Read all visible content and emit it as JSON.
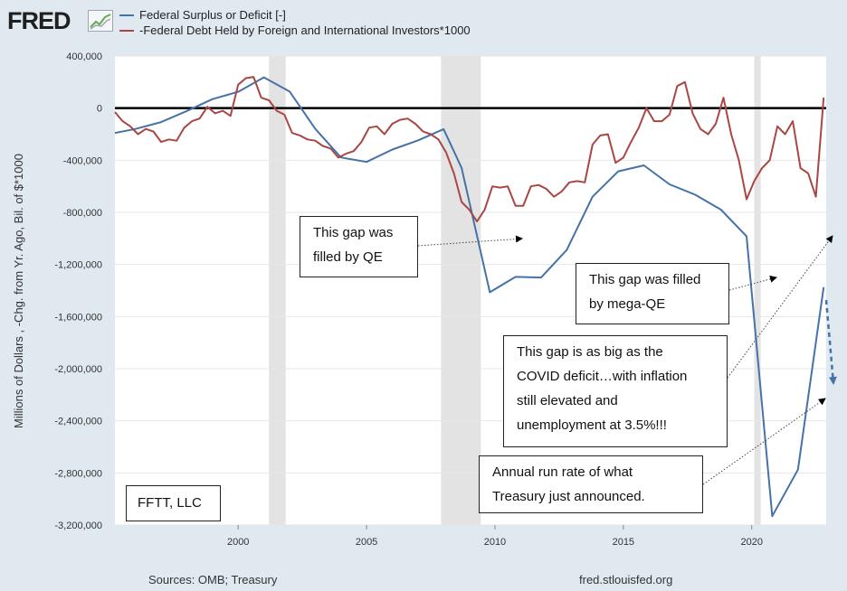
{
  "header": {
    "logo_text": "FRED",
    "logo_icon": "chart-line-icon"
  },
  "legend": {
    "items": [
      {
        "label": "Federal Surplus or Deficit [-]",
        "color": "#4572a7"
      },
      {
        "label": "-Federal Debt Held by Foreign and International Investors*1000",
        "color": "#aa4643"
      }
    ]
  },
  "footer": {
    "source": "Sources: OMB; Treasury",
    "site": "fred.stlouisfed.org"
  },
  "annotations": [
    {
      "id": "qe",
      "lines": [
        "This gap was",
        "filled by QE"
      ]
    },
    {
      "id": "mega-qe",
      "lines": [
        "This gap was filled",
        "by mega-QE"
      ]
    },
    {
      "id": "covid",
      "lines": [
        "This gap is as big as the",
        "COVID deficit…with inflation",
        "still elevated and",
        "unemployment at 3.5%!!!"
      ]
    },
    {
      "id": "annual",
      "lines": [
        "Annual run rate of what",
        "Treasury just announced."
      ]
    },
    {
      "id": "fftt",
      "lines": [
        "FFTT, LLC"
      ]
    }
  ],
  "chart_data": {
    "type": "line",
    "title": "",
    "ylabel": "Millions of Dollars , -Chg. from Yr. Ago, Bil. of $*1000",
    "xlabel": "",
    "xlim": [
      1995.2,
      2022.9
    ],
    "ylim": [
      -3200000,
      400000
    ],
    "yticks": [
      400000,
      0,
      -400000,
      -800000,
      -1200000,
      -1600000,
      -2000000,
      -2400000,
      -2800000,
      -3200000
    ],
    "ytick_labels": [
      "400,000",
      "0",
      "-400,000",
      "-800,000",
      "-1,200,000",
      "-1,600,000",
      "-2,000,000",
      "-2,400,000",
      "-2,800,000",
      "-3,200,000"
    ],
    "xticks": [
      2000,
      2005,
      2010,
      2015,
      2020
    ],
    "xtick_labels": [
      "2000",
      "2005",
      "2010",
      "2015",
      "2020"
    ],
    "recessions": [
      [
        2001.2,
        2001.85
      ],
      [
        2007.9,
        2009.45
      ],
      [
        2020.1,
        2020.35
      ]
    ],
    "zero_line": true,
    "series": [
      {
        "name": "Federal Surplus or Deficit [-]",
        "color": "#4572a7",
        "x": [
          1995.2,
          1996,
          1997,
          1998,
          1999,
          2000,
          2001,
          2002,
          2003,
          2004,
          2005,
          2006,
          2007,
          2008,
          2008.7,
          2009.8,
          2010.8,
          2011.8,
          2012.8,
          2013.8,
          2014.8,
          2015.8,
          2016.8,
          2017.8,
          2018.8,
          2019.8,
          2020.8,
          2021.8,
          2022.8
        ],
        "y": [
          -190000,
          -160000,
          -107000,
          -22000,
          69000,
          125000,
          236000,
          128000,
          -158000,
          -378000,
          -413000,
          -318000,
          -248000,
          -161000,
          -459000,
          -1413000,
          -1295000,
          -1300000,
          -1087000,
          -680000,
          -485000,
          -439000,
          -585000,
          -665000,
          -779000,
          -984000,
          -3132000,
          -2775000,
          -1375000
        ]
      },
      {
        "name": "-Federal Debt Held by Foreign and International Investors*1000",
        "color": "#aa4643",
        "x": [
          1995.2,
          1995.5,
          1995.8,
          1996.1,
          1996.4,
          1996.7,
          1997.0,
          1997.3,
          1997.6,
          1997.9,
          1998.2,
          1998.5,
          1998.8,
          1999.1,
          1999.4,
          1999.7,
          2000.0,
          2000.3,
          2000.6,
          2000.9,
          2001.2,
          2001.5,
          2001.8,
          2002.1,
          2002.4,
          2002.7,
          2003.0,
          2003.3,
          2003.6,
          2003.9,
          2004.2,
          2004.5,
          2004.8,
          2005.1,
          2005.4,
          2005.7,
          2006.0,
          2006.3,
          2006.6,
          2006.9,
          2007.2,
          2007.5,
          2007.8,
          2008.1,
          2008.4,
          2008.7,
          2009.0,
          2009.3,
          2009.6,
          2009.9,
          2010.2,
          2010.5,
          2010.8,
          2011.1,
          2011.4,
          2011.7,
          2012.0,
          2012.3,
          2012.6,
          2012.9,
          2013.2,
          2013.5,
          2013.8,
          2014.1,
          2014.4,
          2014.7,
          2015.0,
          2015.3,
          2015.6,
          2015.9,
          2016.2,
          2016.5,
          2016.8,
          2017.1,
          2017.4,
          2017.7,
          2018.0,
          2018.3,
          2018.6,
          2018.9,
          2019.2,
          2019.5,
          2019.8,
          2020.1,
          2020.4,
          2020.7,
          2021.0,
          2021.3,
          2021.6,
          2021.9,
          2022.2,
          2022.5,
          2022.8
        ],
        "y": [
          -30000,
          -100000,
          -140000,
          -200000,
          -160000,
          -180000,
          -260000,
          -240000,
          -250000,
          -150000,
          -100000,
          -80000,
          10000,
          -40000,
          -20000,
          -60000,
          180000,
          230000,
          240000,
          80000,
          60000,
          -20000,
          -50000,
          -190000,
          -210000,
          -240000,
          -250000,
          -290000,
          -310000,
          -380000,
          -350000,
          -330000,
          -260000,
          -150000,
          -140000,
          -200000,
          -120000,
          -90000,
          -80000,
          -120000,
          -180000,
          -200000,
          -240000,
          -340000,
          -500000,
          -720000,
          -780000,
          -870000,
          -780000,
          -600000,
          -610000,
          -600000,
          -750000,
          -750000,
          -600000,
          -590000,
          -620000,
          -680000,
          -640000,
          -570000,
          -560000,
          -570000,
          -280000,
          -210000,
          -200000,
          -420000,
          -380000,
          -260000,
          -150000,
          0,
          -100000,
          -100000,
          -50000,
          170000,
          200000,
          -40000,
          -160000,
          -200000,
          -120000,
          80000,
          -200000,
          -400000,
          -700000,
          -560000,
          -460000,
          -400000,
          -140000,
          -200000,
          -100000,
          -460000,
          -500000,
          -680000,
          80000
        ]
      }
    ]
  }
}
